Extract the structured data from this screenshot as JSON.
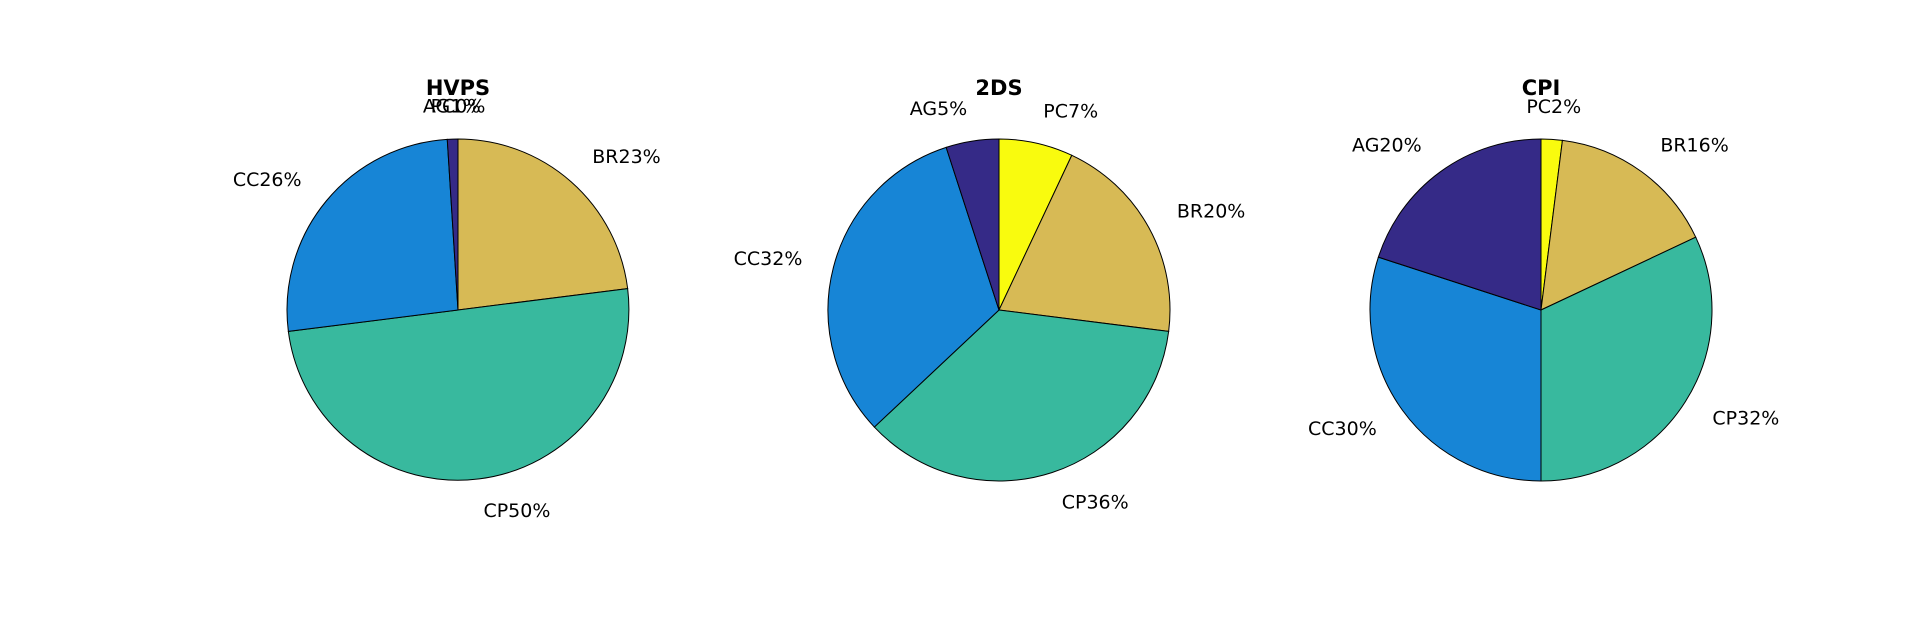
{
  "figure": {
    "background": "#ffffff"
  },
  "chart_data": [
    {
      "type": "pie",
      "title": "HVPS",
      "categories": [
        "PC",
        "BR",
        "CP",
        "CC",
        "AG"
      ],
      "values": [
        0,
        23,
        50,
        26,
        1
      ],
      "labels": [
        "PC0%",
        "BR23%",
        "CP50%",
        "CC26%",
        "AG1%"
      ],
      "colors": [
        "#f9fb0e",
        "#d7ba55",
        "#38b99e",
        "#1785d6",
        "#352a87"
      ],
      "start": "12 o'clock",
      "direction": "clockwise"
    },
    {
      "type": "pie",
      "title": "2DS",
      "categories": [
        "PC",
        "BR",
        "CP",
        "CC",
        "AG"
      ],
      "values": [
        7,
        20,
        36,
        32,
        5
      ],
      "labels": [
        "PC7%",
        "BR20%",
        "CP36%",
        "CC32%",
        "AG5%"
      ],
      "colors": [
        "#f9fb0e",
        "#d7ba55",
        "#38b99e",
        "#1785d6",
        "#352a87"
      ],
      "start": "12 o'clock",
      "direction": "clockwise"
    },
    {
      "type": "pie",
      "title": "CPI",
      "categories": [
        "PC",
        "BR",
        "CP",
        "CC",
        "AG"
      ],
      "values": [
        2,
        16,
        32,
        30,
        20
      ],
      "labels": [
        "PC2%",
        "BR16%",
        "CP32%",
        "CC30%",
        "AG20%"
      ],
      "colors": [
        "#f9fb0e",
        "#d7ba55",
        "#38b99e",
        "#1785d6",
        "#352a87"
      ],
      "start": "12 o'clock",
      "direction": "clockwise"
    }
  ]
}
